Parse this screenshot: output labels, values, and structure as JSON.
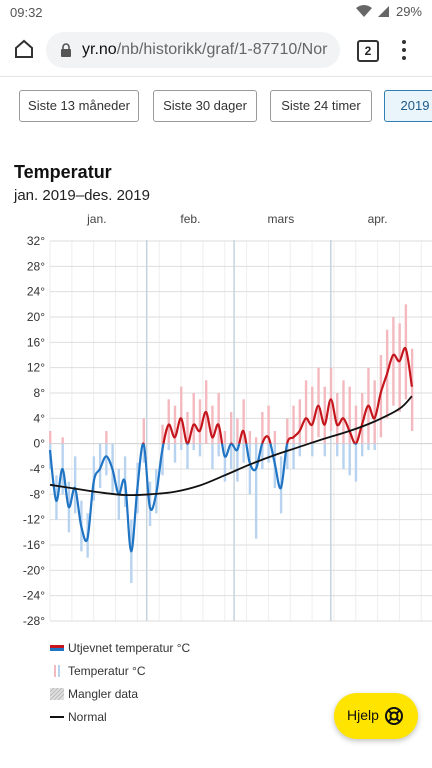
{
  "status": {
    "time": "09:32",
    "battery": "29%"
  },
  "browser": {
    "url_host": "yr.no",
    "url_path": "/nb/historikk/graf/1-87710/Nor",
    "tab_count": "2"
  },
  "periods": [
    {
      "label": "Siste 13 måneder",
      "active": false
    },
    {
      "label": "Siste 30 dager",
      "active": false
    },
    {
      "label": "Siste 24 timer",
      "active": false
    },
    {
      "label": "2019",
      "active": true
    }
  ],
  "chart_title": "Temperatur",
  "chart_subtitle": "jan. 2019–des. 2019",
  "legend": {
    "smoothed": "Utjevnet temperatur °C",
    "temperature": "Temperatur °C",
    "missing": "Mangler data",
    "normal": "Normal"
  },
  "help_label": "Hjelp",
  "chart_data": {
    "type": "line",
    "title": "Temperatur",
    "subtitle": "jan. 2019–des. 2019",
    "ylim": [
      -28,
      32
    ],
    "yticks": [
      32,
      28,
      24,
      20,
      16,
      12,
      8,
      4,
      0,
      -4,
      -8,
      -12,
      -16,
      -20,
      -24,
      -28
    ],
    "tick_suffix": "°",
    "months": [
      {
        "label": "jan.",
        "start_day": 1,
        "label_day": 16
      },
      {
        "label": "feb.",
        "start_day": 32,
        "label_day": 46
      },
      {
        "label": "mars",
        "start_day": 60,
        "label_day": 75
      },
      {
        "label": "apr.",
        "start_day": 91,
        "label_day": 106
      }
    ],
    "visible_day_range": [
      1,
      117
    ],
    "colors": {
      "warm": "#c4161c",
      "cold": "#1f74c4",
      "warm_bar": "#f3b9bf",
      "cold_bar": "#b8d3ef",
      "normal": "#111111"
    },
    "series": [
      {
        "name": "Utjevnet temperatur °C",
        "x": [
          1,
          3,
          5,
          7,
          9,
          11,
          13,
          15,
          17,
          19,
          21,
          23,
          25,
          27,
          29,
          31,
          33,
          35,
          37,
          39,
          41,
          43,
          45,
          47,
          49,
          51,
          53,
          55,
          57,
          59,
          61,
          63,
          65,
          67,
          69,
          71,
          73,
          75,
          77,
          79,
          81,
          83,
          85,
          87,
          89,
          91,
          93,
          95,
          97,
          99,
          101,
          103,
          105,
          107,
          109,
          111,
          113,
          115,
          117
        ],
        "y": [
          -1,
          -9,
          -4,
          -10,
          -7,
          -13,
          -15,
          -6,
          -4,
          -2,
          -4,
          -8,
          -6,
          -17,
          -7,
          0,
          -10,
          -8,
          -1,
          3,
          1,
          4,
          0,
          3,
          2,
          5,
          1,
          3,
          -2,
          0,
          -1,
          2,
          -3,
          -4,
          0,
          1,
          -3,
          -7,
          0,
          1,
          2,
          4,
          3,
          6,
          3,
          7,
          3,
          4,
          2,
          0,
          3,
          6,
          4,
          8,
          11,
          14,
          13,
          15,
          9
        ]
      },
      {
        "name": "Normal",
        "x": [
          1,
          9,
          17,
          25,
          33,
          41,
          49,
          57,
          65,
          73,
          81,
          89,
          97,
          105,
          113,
          117
        ],
        "y": [
          -6.5,
          -7.1,
          -7.7,
          -8.1,
          -8.0,
          -7.6,
          -6.6,
          -5.0,
          -3.3,
          -1.8,
          -0.5,
          0.8,
          2.0,
          3.5,
          5.5,
          7.5
        ]
      }
    ],
    "temperature_range_bars": {
      "name": "Temperatur °C",
      "x": [
        1,
        3,
        5,
        7,
        9,
        11,
        13,
        15,
        17,
        19,
        21,
        23,
        25,
        27,
        29,
        31,
        33,
        35,
        37,
        39,
        41,
        43,
        45,
        47,
        49,
        51,
        53,
        55,
        57,
        59,
        61,
        63,
        65,
        67,
        69,
        71,
        73,
        75,
        77,
        79,
        81,
        83,
        85,
        87,
        89,
        91,
        93,
        95,
        97,
        99,
        101,
        103,
        105,
        107,
        109,
        111,
        113,
        115,
        117
      ],
      "min": [
        -4,
        -12,
        -8,
        -14,
        -11,
        -17,
        -18,
        -9,
        -7,
        -5,
        -8,
        -12,
        -10,
        -22,
        -11,
        -3,
        -13,
        -11,
        -5,
        -1,
        -3,
        -1,
        -4,
        -1,
        -2,
        0,
        -4,
        -2,
        -6,
        -4,
        -6,
        -3,
        -8,
        -15,
        -4,
        -3,
        -7,
        -11,
        -4,
        -4,
        -2,
        0,
        -2,
        1,
        -2,
        2,
        -2,
        -4,
        -5,
        -6,
        -2,
        -1,
        -1,
        1,
        4,
        6,
        5,
        7,
        2
      ],
      "max": [
        2,
        -5,
        1,
        -6,
        -2,
        -9,
        -11,
        -2,
        0,
        2,
        0,
        -4,
        -2,
        -12,
        -3,
        4,
        -6,
        -4,
        3,
        7,
        6,
        9,
        5,
        8,
        7,
        10,
        6,
        8,
        2,
        5,
        4,
        7,
        2,
        1,
        5,
        6,
        2,
        -2,
        4,
        6,
        7,
        10,
        9,
        12,
        9,
        12,
        8,
        10,
        9,
        6,
        8,
        12,
        10,
        14,
        18,
        20,
        19,
        22,
        15
      ]
    }
  }
}
